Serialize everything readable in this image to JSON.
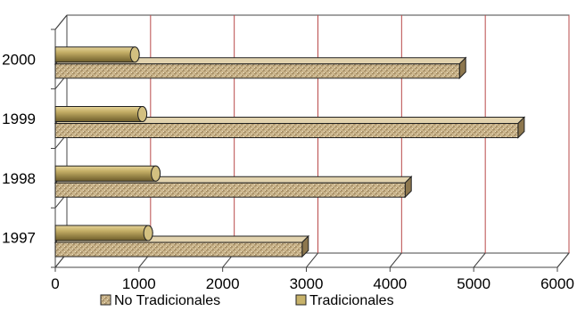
{
  "chart_data": {
    "type": "bar",
    "orientation": "horizontal",
    "style": "3d",
    "categories": [
      "1997",
      "1998",
      "1999",
      "2000"
    ],
    "series": [
      {
        "name": "No Tradicionales",
        "values": [
          2950,
          4180,
          5530,
          4830
        ],
        "color": "#c9b58c",
        "pattern": "woven"
      },
      {
        "name": "Tradicionales",
        "values": [
          1110,
          1200,
          1040,
          950
        ],
        "color": "#c7b26a",
        "pattern": "cylinder"
      }
    ],
    "xlim": [
      0,
      6000
    ],
    "xticks": [
      0,
      1000,
      2000,
      3000,
      4000,
      5000,
      6000
    ],
    "grid": true,
    "grid_color": "#b94a4a",
    "legend_position": "bottom",
    "title": "",
    "xlabel": "",
    "ylabel": ""
  }
}
